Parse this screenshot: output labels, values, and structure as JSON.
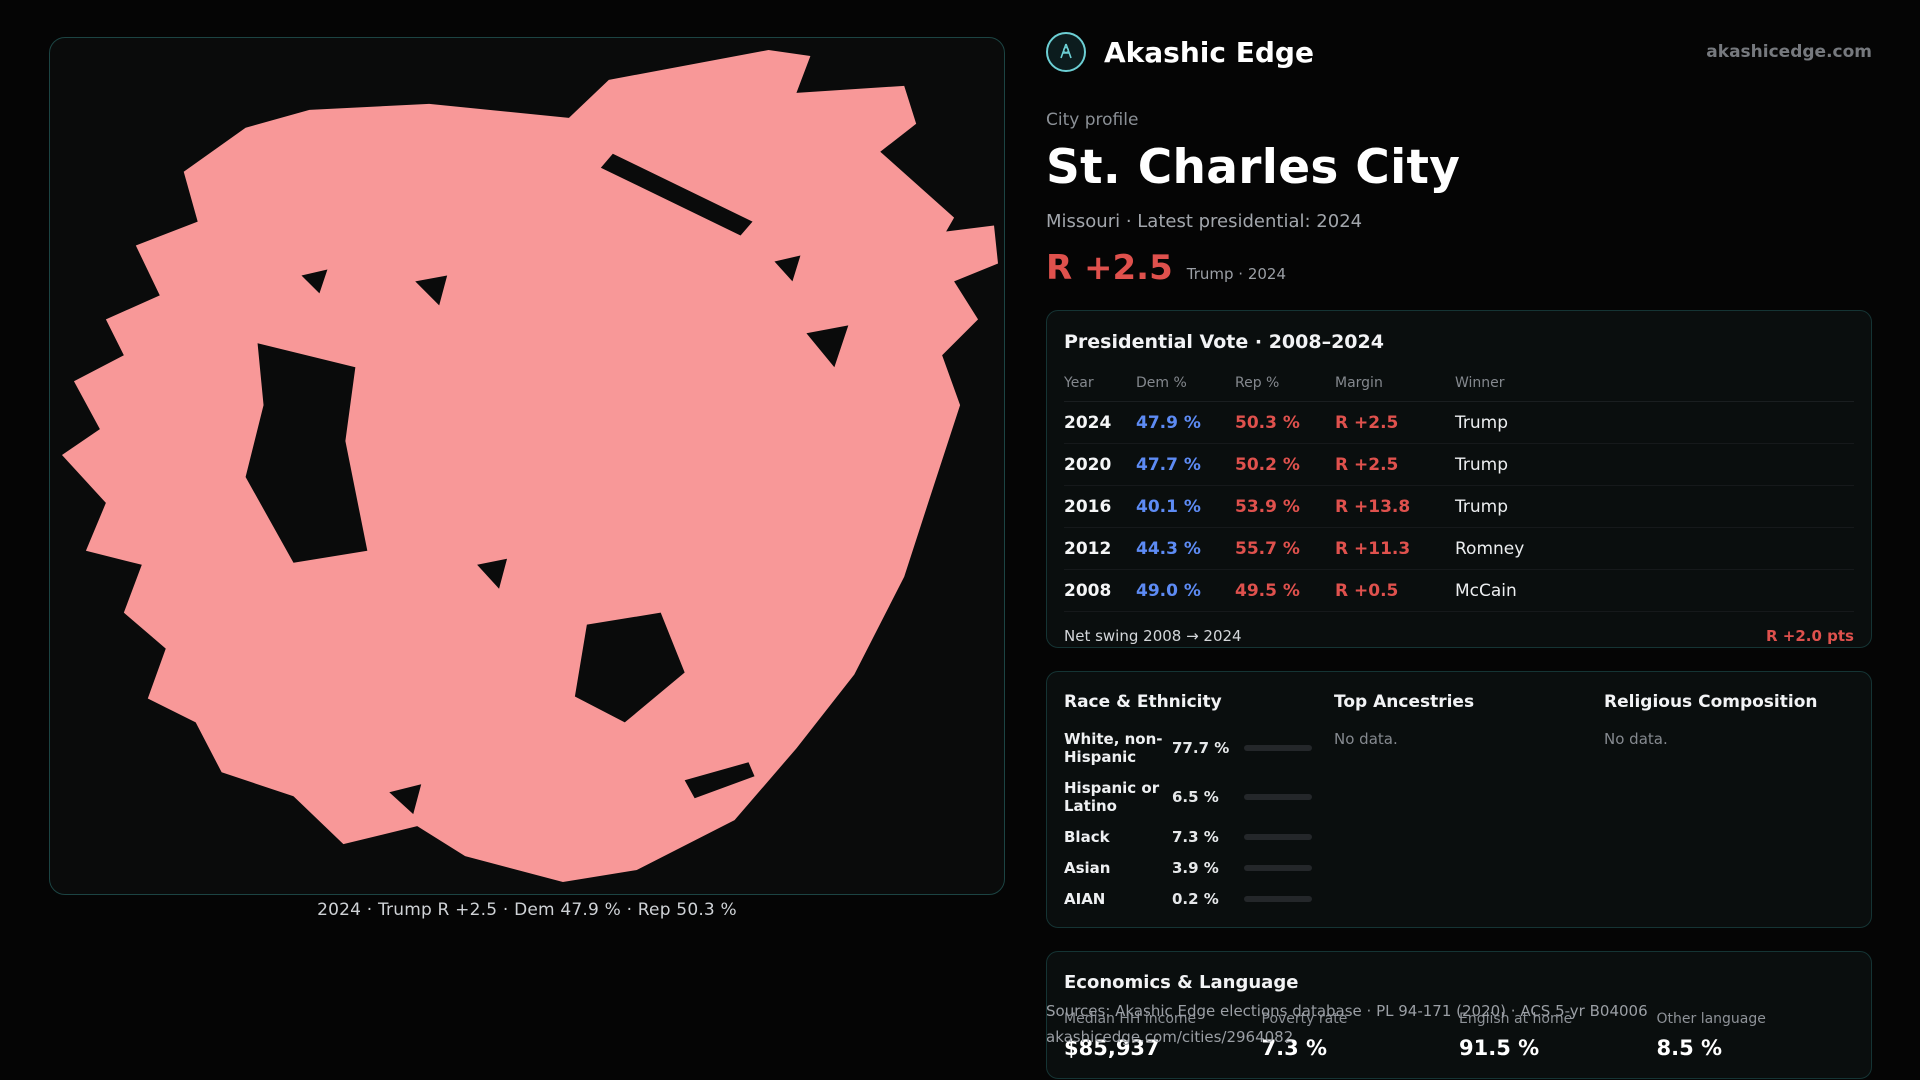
{
  "colors": {
    "map_fill": "#f89898",
    "dem_blue": "#5d8bf4",
    "rep_red": "#df514d"
  },
  "header": {
    "brand": "Akashic Edge",
    "site": "akashicedge.com"
  },
  "profile": {
    "kicker": "City profile",
    "title": "St. Charles City",
    "subtitle": "Missouri · Latest presidential: 2024",
    "margin": "R +2.5",
    "margin_note": "Trump · 2024"
  },
  "map": {
    "caption": "2024 · Trump R +2.5 · Dem 47.9 % · Rep 50.3 %"
  },
  "vote_table": {
    "title": "Presidential Vote · 2008–2024",
    "columns": {
      "year": "Year",
      "dem": "Dem %",
      "rep": "Rep %",
      "margin": "Margin",
      "winner": "Winner"
    },
    "rows": [
      {
        "year": "2024",
        "dem": "47.9 %",
        "rep": "50.3 %",
        "margin": "R +2.5",
        "winner": "Trump"
      },
      {
        "year": "2020",
        "dem": "47.7 %",
        "rep": "50.2 %",
        "margin": "R +2.5",
        "winner": "Trump"
      },
      {
        "year": "2016",
        "dem": "40.1 %",
        "rep": "53.9 %",
        "margin": "R +13.8",
        "winner": "Trump"
      },
      {
        "year": "2012",
        "dem": "44.3 %",
        "rep": "55.7 %",
        "margin": "R +11.3",
        "winner": "Romney"
      },
      {
        "year": "2008",
        "dem": "49.0 %",
        "rep": "49.5 %",
        "margin": "R +0.5",
        "winner": "McCain"
      }
    ],
    "net_swing_label": "Net swing 2008 → 2024",
    "net_swing_value": "R +2.0 pts"
  },
  "demographics": {
    "race_title": "Race & Ethnicity",
    "races": [
      {
        "label": "White, non-Hispanic",
        "value": "77.7 %",
        "pct": 77.7,
        "color": "#a9aeb6"
      },
      {
        "label": "Hispanic or Latino",
        "value": "6.5 %",
        "pct": 6.5,
        "color": "#e79a3c"
      },
      {
        "label": "Black",
        "value": "7.3 %",
        "pct": 7.3,
        "color": "#8d7bf6"
      },
      {
        "label": "Asian",
        "value": "3.9 %",
        "pct": 3.9,
        "color": "#2fbfa4"
      },
      {
        "label": "AIAN",
        "value": "0.2 %",
        "pct": 0.2,
        "color": "#a9aeb6"
      }
    ],
    "ancestry_title": "Top Ancestries",
    "ancestry_empty": "No data.",
    "religion_title": "Religious Composition",
    "religion_empty": "No data."
  },
  "economics": {
    "title": "Economics & Language",
    "stats": [
      {
        "label": "Median HH income",
        "value": "$85,937"
      },
      {
        "label": "Poverty rate",
        "value": "7.3 %"
      },
      {
        "label": "English at home",
        "value": "91.5 %"
      },
      {
        "label": "Other language",
        "value": "8.5 %"
      }
    ]
  },
  "footer": {
    "sources": "Sources: Akashic Edge elections database · PL 94-171 (2020) · ACS 5-yr B04006",
    "permalink": "akashicedge.com/cities/2964082"
  }
}
